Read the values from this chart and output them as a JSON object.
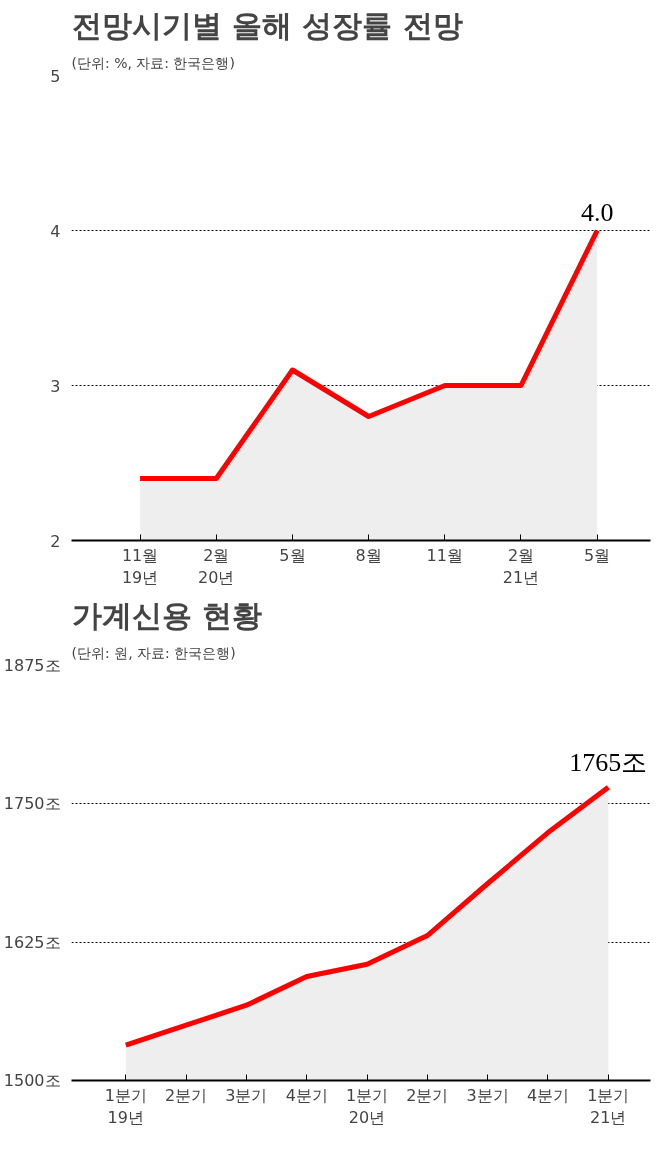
{
  "chart_data": [
    {
      "type": "area",
      "title": "전망시기별 올해 성장률 전망",
      "subtitle": "(단위: %, 자료: 한국은행)",
      "categories": [
        "11월\n19년",
        "2월\n20년",
        "5월",
        "8월",
        "11월",
        "2월\n21년",
        "5월"
      ],
      "series": [
        {
          "color": "#ff0000",
          "values": [
            2.4,
            2.4,
            3.1,
            2.8,
            3.0,
            3.0,
            4.0
          ],
          "value_labels": [
            null,
            null,
            null,
            null,
            null,
            null,
            "4.0"
          ]
        }
      ],
      "ylim": [
        2,
        5
      ],
      "yticks": [
        2,
        3,
        4,
        5
      ],
      "grid": "y"
    },
    {
      "type": "area",
      "title": "가계신용 현황",
      "subtitle": "(단위: 원, 자료: 한국은행)",
      "categories": [
        "1분기\n19년",
        "2분기",
        "3분기",
        "4분기",
        "1분기\n20년",
        "2분기",
        "3분기",
        "4분기",
        "1분기\n21년"
      ],
      "series": [
        {
          "color": "#ff0000",
          "values": [
            1532,
            1550,
            1568,
            1594,
            1605,
            1631,
            1678,
            1724,
            1765
          ],
          "value_labels": [
            null,
            null,
            null,
            null,
            null,
            null,
            null,
            null,
            "1765조"
          ]
        }
      ],
      "ylim": [
        1500,
        1875
      ],
      "yticks": [
        {
          "value": 1500,
          "label": "1500조"
        },
        {
          "value": 1625,
          "label": "1625조"
        },
        {
          "value": 1750,
          "label": "1750조"
        },
        {
          "value": 1875,
          "label": "1875조"
        }
      ],
      "grid": "y"
    }
  ]
}
